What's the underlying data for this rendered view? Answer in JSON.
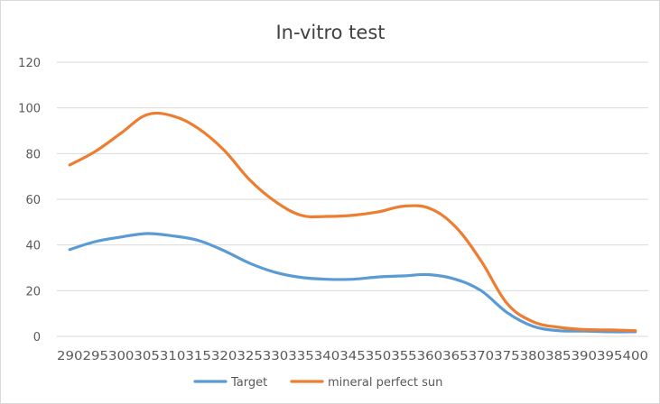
{
  "chart_data": {
    "type": "line",
    "title": "In-vitro test",
    "xlabel": "",
    "ylabel": "",
    "ylim": [
      0,
      120
    ],
    "yticks": [
      0,
      20,
      40,
      60,
      80,
      100,
      120
    ],
    "grid": true,
    "legend_position": "bottom",
    "categories": [
      "290",
      "295",
      "300",
      "305",
      "310",
      "315",
      "320",
      "325",
      "330",
      "335",
      "340",
      "345",
      "350",
      "355",
      "360",
      "365",
      "370",
      "375",
      "380",
      "385",
      "390",
      "395",
      "400"
    ],
    "series": [
      {
        "name": "Target",
        "color": "#5B9BD5",
        "values": [
          38,
          41.5,
          43.5,
          45,
          44,
          42,
          37.5,
          32,
          28,
          25.8,
          25,
          25,
          26,
          26.5,
          27,
          25,
          20,
          10.5,
          4.5,
          2.5,
          2.3,
          2,
          2
        ]
      },
      {
        "name": "mineral perfect sun",
        "color": "#ED7D31",
        "values": [
          75,
          81,
          89,
          97,
          96.5,
          91,
          81.5,
          68.5,
          59,
          53,
          52.5,
          53,
          54.5,
          57,
          56,
          48,
          33,
          14.5,
          6.5,
          4,
          3,
          2.8,
          2.5
        ]
      }
    ]
  }
}
